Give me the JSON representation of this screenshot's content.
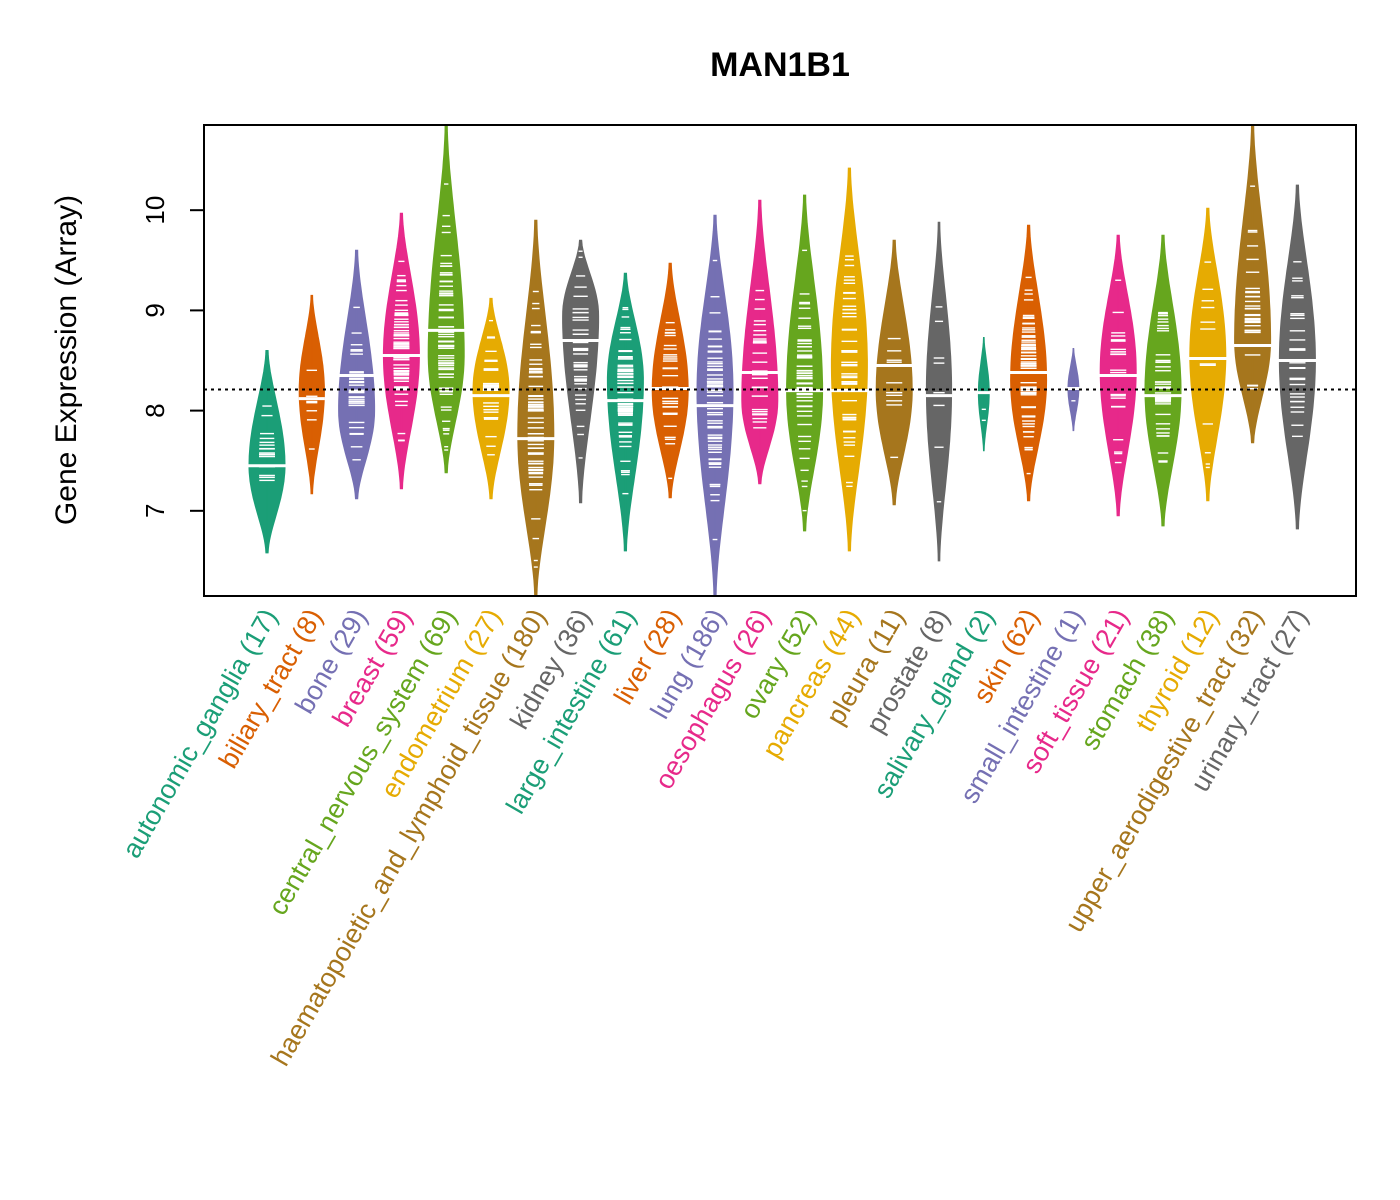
{
  "chart_data": {
    "type": "violin",
    "title": "MAN1B1",
    "ylabel": "Gene Expression (Array)",
    "xlabel": "",
    "ylim": [
      6.15,
      10.85
    ],
    "yticks": [
      7,
      8,
      9,
      10
    ],
    "reference_line": 8.21,
    "grid": false,
    "legend": "none",
    "categories": [
      {
        "name": "autonomic_ganglia",
        "n": 17,
        "label": "autonomic_ganglia (17)",
        "color": "#1B9E77",
        "min": 6.58,
        "max": 8.6,
        "median": 7.45,
        "mode": 7.45
      },
      {
        "name": "biliary_tract",
        "n": 8,
        "label": "biliary_tract (8)",
        "color": "#D95F02",
        "min": 7.17,
        "max": 9.15,
        "median": 8.12,
        "mode": 8.2
      },
      {
        "name": "bone",
        "n": 29,
        "label": "bone (29)",
        "color": "#7570B3",
        "min": 7.12,
        "max": 9.6,
        "median": 8.35,
        "mode": 8.0
      },
      {
        "name": "breast",
        "n": 59,
        "label": "breast (59)",
        "color": "#E7298A",
        "min": 7.22,
        "max": 9.97,
        "median": 8.55,
        "mode": 8.55
      },
      {
        "name": "central_nervous_system",
        "n": 69,
        "label": "central_nervous_system (69)",
        "color": "#66A61E",
        "min": 7.38,
        "max": 10.85,
        "median": 8.8,
        "mode": 8.55
      },
      {
        "name": "endometrium",
        "n": 27,
        "label": "endometrium (27)",
        "color": "#E6AB02",
        "min": 7.12,
        "max": 9.12,
        "median": 8.15,
        "mode": 8.2
      },
      {
        "name": "haematopoietic_and_lymphoid_tissue",
        "n": 180,
        "label": "haematopoietic_and_lymphoid_tissue (180)",
        "color": "#A6761D",
        "min": 6.15,
        "max": 9.9,
        "median": 7.72,
        "mode": 7.75
      },
      {
        "name": "kidney",
        "n": 36,
        "label": "kidney (36)",
        "color": "#666666",
        "min": 7.08,
        "max": 9.7,
        "median": 8.7,
        "mode": 8.95
      },
      {
        "name": "large_intestine",
        "n": 61,
        "label": "large_intestine (61)",
        "color": "#1B9E77",
        "min": 6.6,
        "max": 9.37,
        "median": 8.1,
        "mode": 8.3
      },
      {
        "name": "liver",
        "n": 28,
        "label": "liver (28)",
        "color": "#D95F02",
        "min": 7.13,
        "max": 9.47,
        "median": 8.22,
        "mode": 8.2
      },
      {
        "name": "lung",
        "n": 186,
        "label": "lung (186)",
        "color": "#7570B3",
        "min": 6.15,
        "max": 9.95,
        "median": 8.05,
        "mode": 8.2
      },
      {
        "name": "oesophagus",
        "n": 26,
        "label": "oesophagus (26)",
        "color": "#E7298A",
        "min": 7.27,
        "max": 10.1,
        "median": 8.38,
        "mode": 8.1
      },
      {
        "name": "ovary",
        "n": 52,
        "label": "ovary (52)",
        "color": "#66A61E",
        "min": 6.8,
        "max": 10.15,
        "median": 8.2,
        "mode": 8.2
      },
      {
        "name": "pancreas",
        "n": 44,
        "label": "pancreas (44)",
        "color": "#E6AB02",
        "min": 6.6,
        "max": 10.42,
        "median": 8.2,
        "mode": 8.45
      },
      {
        "name": "pleura",
        "n": 11,
        "label": "pleura (11)",
        "color": "#A6761D",
        "min": 7.06,
        "max": 9.7,
        "median": 8.45,
        "mode": 8.2
      },
      {
        "name": "prostate",
        "n": 8,
        "label": "prostate (8)",
        "color": "#666666",
        "min": 6.5,
        "max": 9.88,
        "median": 8.15,
        "mode": 8.2
      },
      {
        "name": "salivary_gland",
        "n": 2,
        "label": "salivary_gland (2)",
        "color": "#1B9E77",
        "min": 7.6,
        "max": 8.73,
        "median": 8.18,
        "mode": 8.18
      },
      {
        "name": "skin",
        "n": 62,
        "label": "skin (62)",
        "color": "#D95F02",
        "min": 7.1,
        "max": 9.85,
        "median": 8.38,
        "mode": 8.3
      },
      {
        "name": "small_intestine",
        "n": 1,
        "label": "small_intestine (1)",
        "color": "#7570B3",
        "min": 7.8,
        "max": 8.62,
        "median": 8.22,
        "mode": 8.22
      },
      {
        "name": "soft_tissue",
        "n": 21,
        "label": "soft_tissue (21)",
        "color": "#E7298A",
        "min": 6.95,
        "max": 9.75,
        "median": 8.35,
        "mode": 8.4
      },
      {
        "name": "stomach",
        "n": 38,
        "label": "stomach (38)",
        "color": "#66A61E",
        "min": 6.85,
        "max": 9.75,
        "median": 8.15,
        "mode": 8.2
      },
      {
        "name": "thyroid",
        "n": 12,
        "label": "thyroid (12)",
        "color": "#E6AB02",
        "min": 7.1,
        "max": 10.02,
        "median": 8.52,
        "mode": 8.55
      },
      {
        "name": "upper_aerodigestive_tract",
        "n": 32,
        "label": "upper_aerodigestive_tract (32)",
        "color": "#A6761D",
        "min": 7.68,
        "max": 10.85,
        "median": 8.65,
        "mode": 8.7
      },
      {
        "name": "urinary_tract",
        "n": 27,
        "label": "urinary_tract (27)",
        "color": "#666666",
        "min": 6.82,
        "max": 10.25,
        "median": 8.5,
        "mode": 8.5
      }
    ]
  }
}
